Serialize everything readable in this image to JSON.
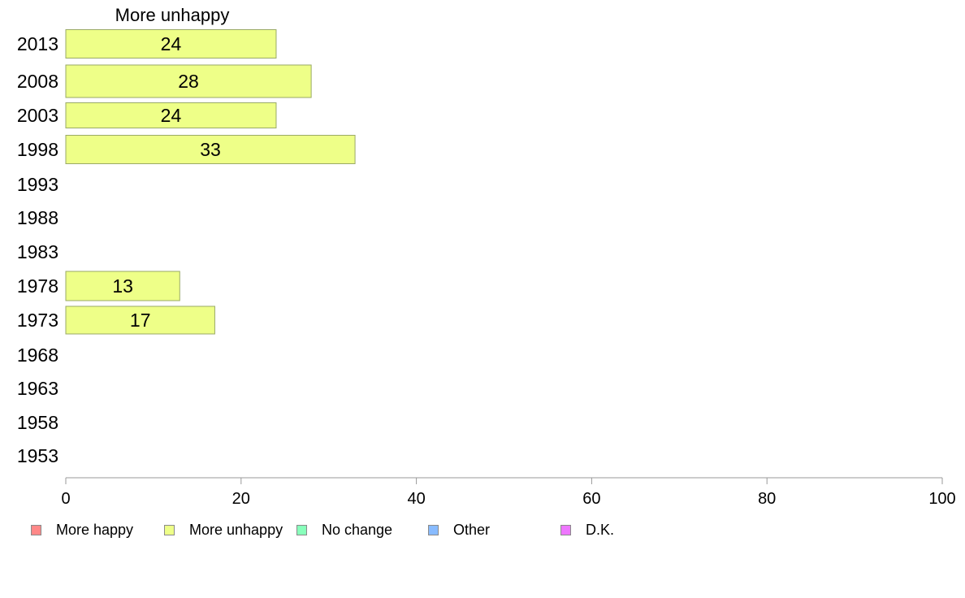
{
  "chart_data": {
    "type": "bar",
    "orientation": "horizontal",
    "title": "More unhappy",
    "categories": [
      "2013",
      "2008",
      "2003",
      "1998",
      "1993",
      "1988",
      "1983",
      "1978",
      "1973",
      "1968",
      "1963",
      "1958",
      "1953"
    ],
    "series": [
      {
        "name": "More unhappy",
        "color": "#eeff88",
        "values": [
          24,
          28,
          24,
          33,
          null,
          null,
          null,
          13,
          17,
          null,
          null,
          null,
          null
        ],
        "labels": [
          "24",
          "28",
          "24",
          "33",
          "",
          "",
          "",
          "13",
          "17",
          "",
          "",
          "",
          ""
        ]
      }
    ],
    "xlim": [
      0,
      100
    ],
    "xticks": [
      "0",
      "20",
      "40",
      "60",
      "80",
      "100"
    ],
    "grid": false,
    "legend_position": "bottom",
    "legend": [
      {
        "label": "More happy",
        "color": "#ff8888"
      },
      {
        "label": "More unhappy",
        "color": "#eeff88"
      },
      {
        "label": "No change",
        "color": "#88ffbb"
      },
      {
        "label": "Other",
        "color": "#88bbff"
      },
      {
        "label": "D.K.",
        "color": "#ee77ff"
      }
    ]
  }
}
